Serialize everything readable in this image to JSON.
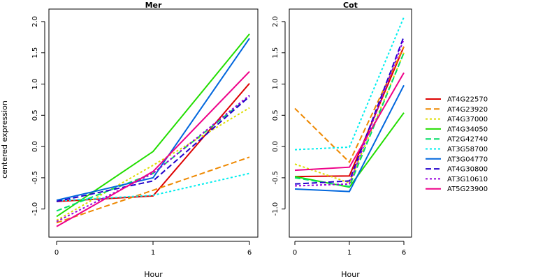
{
  "chart_data": {
    "type": "line",
    "ylabel": "centered expression",
    "legend_position": "right",
    "series_styles": [
      {
        "name": "AT4G22570",
        "color": "#dd0000",
        "dash": "solid"
      },
      {
        "name": "AT4G23920",
        "color": "#ee8800",
        "dash": "dashed"
      },
      {
        "name": "AT4G37000",
        "color": "#dddd00",
        "dash": "dotted"
      },
      {
        "name": "AT4G34050",
        "color": "#22dd00",
        "dash": "solid"
      },
      {
        "name": "AT2G42740",
        "color": "#00dd66",
        "dash": "dashed"
      },
      {
        "name": "AT3G58700",
        "color": "#00eeee",
        "dash": "dotted"
      },
      {
        "name": "AT3G04770",
        "color": "#0066dd",
        "dash": "solid"
      },
      {
        "name": "AT4G30800",
        "color": "#2200cc",
        "dash": "dashed"
      },
      {
        "name": "AT3G10610",
        "color": "#9900dd",
        "dash": "dotted"
      },
      {
        "name": "AT5G23900",
        "color": "#ee0088",
        "dash": "solid"
      }
    ],
    "panels": [
      {
        "title": "Mer",
        "xlabel": "Hour",
        "x": [
          "0",
          "1",
          "6"
        ],
        "ylim": [
          -1.45,
          2.2
        ],
        "yticks": [
          "-1.0",
          "-0.5",
          "0.0",
          "0.5",
          "1.0",
          "1.5",
          "2.0"
        ],
        "series": [
          {
            "name": "AT4G22570",
            "values": [
              -0.88,
              -0.79,
              1.01
            ]
          },
          {
            "name": "AT4G23920",
            "values": [
              -1.22,
              -0.7,
              -0.17
            ]
          },
          {
            "name": "AT4G37000",
            "values": [
              -1.18,
              -0.3,
              0.62
            ]
          },
          {
            "name": "AT4G34050",
            "values": [
              -1.12,
              -0.08,
              1.8
            ]
          },
          {
            "name": "AT2G42740",
            "values": [
              -1.03,
              -0.43,
              0.8
            ]
          },
          {
            "name": "AT3G58700",
            "values": [
              -0.87,
              -0.78,
              -0.43
            ]
          },
          {
            "name": "AT3G04770",
            "values": [
              -0.86,
              -0.5,
              1.73
            ]
          },
          {
            "name": "AT4G30800",
            "values": [
              -0.88,
              -0.55,
              0.8
            ]
          },
          {
            "name": "AT3G10610",
            "values": [
              -1.2,
              -0.43,
              0.82
            ]
          },
          {
            "name": "AT5G23900",
            "values": [
              -1.28,
              -0.4,
              1.2
            ]
          }
        ]
      },
      {
        "title": "Cot",
        "xlabel": "Hour",
        "x": [
          "0",
          "1",
          "6"
        ],
        "ylim": [
          -1.45,
          2.2
        ],
        "yticks": [
          "-1.0",
          "-0.5",
          "0.0",
          "0.5",
          "1.0",
          "1.5",
          "2.0"
        ],
        "series": [
          {
            "name": "AT4G22570",
            "values": [
              -0.48,
              -0.47,
              1.6
            ]
          },
          {
            "name": "AT4G23920",
            "values": [
              0.61,
              -0.25,
              1.6
            ]
          },
          {
            "name": "AT4G37000",
            "values": [
              -0.28,
              -0.58,
              1.5
            ]
          },
          {
            "name": "AT4G34050",
            "values": [
              -0.48,
              -0.65,
              0.54
            ]
          },
          {
            "name": "AT2G42740",
            "values": [
              -0.5,
              -0.64,
              1.5
            ]
          },
          {
            "name": "AT3G58700",
            "values": [
              -0.05,
              -0.01,
              2.07
            ]
          },
          {
            "name": "AT3G04770",
            "values": [
              -0.68,
              -0.72,
              0.98
            ]
          },
          {
            "name": "AT4G30800",
            "values": [
              -0.6,
              -0.55,
              1.76
            ]
          },
          {
            "name": "AT3G10610",
            "values": [
              -0.63,
              -0.6,
              1.72
            ]
          },
          {
            "name": "AT5G23900",
            "values": [
              -0.38,
              -0.33,
              1.18
            ]
          }
        ]
      }
    ]
  }
}
